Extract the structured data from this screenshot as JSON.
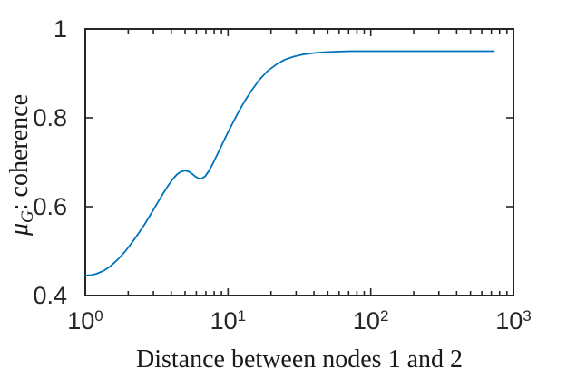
{
  "figure": {
    "background": "#ffffff",
    "axes_color": "#262626",
    "tick_label_color": "#262626"
  },
  "chart_data": {
    "type": "line",
    "title": "",
    "xlabel": "Distance between nodes 1 and 2",
    "ylabel": "μG: coherence",
    "ylabel_parts": {
      "symbol": "μ",
      "subscript": "G",
      "suffix": ": coherence"
    },
    "x_scale": "log",
    "y_scale": "linear",
    "xlim": [
      1,
      1000
    ],
    "ylim": [
      0.4,
      1.0
    ],
    "grid": false,
    "legend": null,
    "x_ticks": [
      {
        "base": "10",
        "exp": "0",
        "value": 1
      },
      {
        "base": "10",
        "exp": "1",
        "value": 10
      },
      {
        "base": "10",
        "exp": "2",
        "value": 100
      },
      {
        "base": "10",
        "exp": "3",
        "value": 1000
      }
    ],
    "y_ticks": [
      {
        "label": "1",
        "value": 1.0
      },
      {
        "label": "0.8",
        "value": 0.8
      },
      {
        "label": "0.6",
        "value": 0.6
      },
      {
        "label": "0.4",
        "value": 0.4
      }
    ],
    "series": [
      {
        "name": "coherence",
        "color": "#0072BD",
        "x": [
          1.0,
          1.1,
          1.2,
          1.35,
          1.5,
          1.7,
          1.9,
          2.1,
          2.35,
          2.6,
          2.9,
          3.2,
          3.5,
          3.8,
          4.1,
          4.4,
          4.7,
          5.0,
          5.3,
          5.6,
          5.9,
          6.2,
          6.5,
          6.9,
          7.4,
          8.0,
          8.7,
          9.5,
          10.5,
          11.7,
          13,
          14.5,
          16.5,
          19,
          22,
          25,
          29,
          34,
          40,
          48,
          58,
          72,
          90,
          115,
          150,
          200,
          280,
          400,
          550,
          730
        ],
        "y": [
          0.445,
          0.446,
          0.449,
          0.456,
          0.466,
          0.482,
          0.499,
          0.517,
          0.539,
          0.56,
          0.585,
          0.608,
          0.629,
          0.647,
          0.662,
          0.673,
          0.679,
          0.681,
          0.679,
          0.674,
          0.668,
          0.664,
          0.663,
          0.668,
          0.682,
          0.703,
          0.727,
          0.753,
          0.781,
          0.81,
          0.836,
          0.86,
          0.885,
          0.906,
          0.921,
          0.931,
          0.938,
          0.943,
          0.946,
          0.948,
          0.949,
          0.95,
          0.95,
          0.95,
          0.95,
          0.95,
          0.95,
          0.95,
          0.95,
          0.95
        ]
      }
    ]
  }
}
